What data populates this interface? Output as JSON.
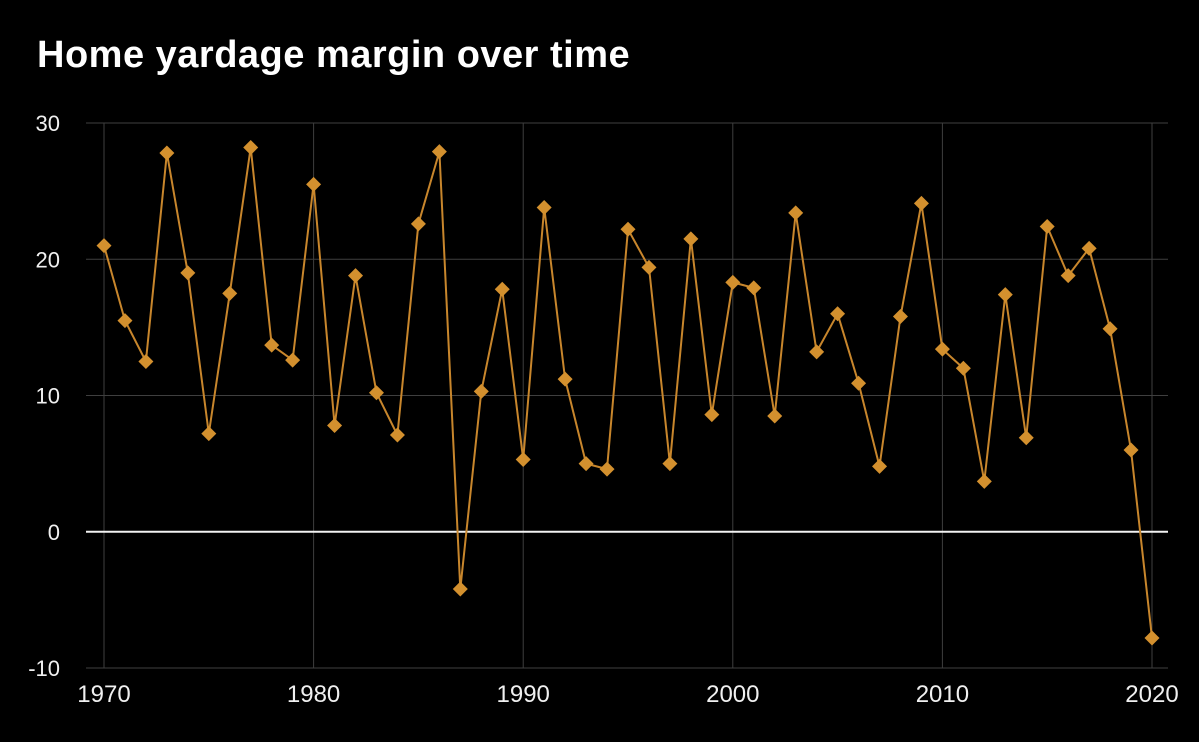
{
  "page": {
    "background": "#000000",
    "text_color": "#ffffff"
  },
  "chart_data": {
    "type": "line",
    "title": "Home yardage margin over time",
    "xlabel": "",
    "ylabel": "",
    "series_name": "Home yardage margin",
    "x": [
      1970,
      1971,
      1972,
      1973,
      1974,
      1975,
      1976,
      1977,
      1978,
      1979,
      1980,
      1981,
      1982,
      1983,
      1984,
      1985,
      1986,
      1987,
      1988,
      1989,
      1990,
      1991,
      1992,
      1993,
      1994,
      1995,
      1996,
      1997,
      1998,
      1999,
      2000,
      2001,
      2002,
      2003,
      2004,
      2005,
      2006,
      2007,
      2008,
      2009,
      2010,
      2011,
      2012,
      2013,
      2014,
      2015,
      2016,
      2017,
      2018,
      2019,
      2020
    ],
    "values": [
      21.0,
      15.5,
      12.5,
      27.8,
      19.0,
      7.2,
      17.5,
      28.2,
      13.7,
      12.6,
      25.5,
      7.8,
      18.8,
      10.2,
      7.1,
      22.6,
      27.9,
      -4.2,
      10.3,
      17.8,
      5.3,
      23.8,
      11.2,
      5.0,
      4.6,
      22.2,
      19.4,
      5.0,
      21.5,
      8.6,
      18.3,
      17.9,
      8.5,
      23.4,
      13.2,
      16.0,
      10.9,
      4.8,
      15.8,
      24.1,
      13.4,
      12.0,
      3.7,
      17.4,
      6.9,
      22.4,
      18.8,
      20.8,
      14.9,
      6.0,
      -7.8
    ],
    "xlim": [
      1970,
      2020
    ],
    "ylim": [
      -10,
      30
    ],
    "xticks": [
      1970,
      1980,
      1990,
      2000,
      2010,
      2020
    ],
    "yticks": [
      -10,
      0,
      10,
      20,
      30
    ],
    "grid": true,
    "legend": false,
    "marker": "diamond",
    "line_color": "#c8862c",
    "marker_color": "#d3902e",
    "grid_color": "#3f3f3f",
    "zero_line_color": "#f2f2f2",
    "tick_label_color": "#f0f0f0"
  }
}
